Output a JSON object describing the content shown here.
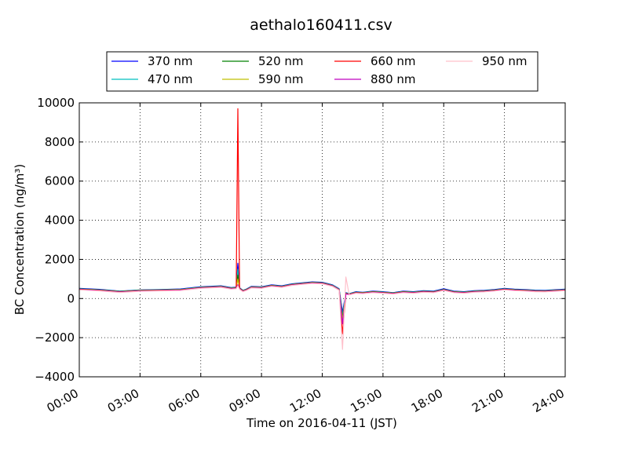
{
  "chart_data": {
    "type": "line",
    "title": "aethalo160411.csv",
    "xlabel": "Time on 2016-04-11 (JST)",
    "ylabel": "BC Concentration (ng/m³)",
    "xlim": [
      "00:00",
      "24:00"
    ],
    "ylim": [
      -4000,
      10000
    ],
    "grid": true,
    "legend_position": "top",
    "x_ticks": [
      "00:00",
      "03:00",
      "06:00",
      "09:00",
      "12:00",
      "15:00",
      "18:00",
      "21:00",
      "24:00"
    ],
    "y_ticks": [
      "−4000",
      "−2000",
      "0",
      "2000",
      "4000",
      "6000",
      "8000",
      "10000"
    ],
    "x": [
      "00:00",
      "01:00",
      "02:00",
      "03:00",
      "04:00",
      "05:00",
      "06:00",
      "07:00",
      "07:30",
      "07:45",
      "07:50",
      "07:55",
      "08:05",
      "08:15",
      "08:30",
      "09:00",
      "09:30",
      "10:00",
      "10:30",
      "11:00",
      "11:30",
      "12:00",
      "12:30",
      "12:50",
      "13:00",
      "13:10",
      "13:20",
      "13:40",
      "14:00",
      "14:30",
      "15:00",
      "15:30",
      "16:00",
      "16:30",
      "17:00",
      "17:30",
      "18:00",
      "18:30",
      "19:00",
      "19:30",
      "20:00",
      "20:30",
      "21:00",
      "21:30",
      "22:00",
      "22:30",
      "23:00",
      "23:30",
      "24:00"
    ],
    "series": [
      {
        "name": "370 nm",
        "color": "#0000ff",
        "values": [
          520,
          470,
          380,
          440,
          460,
          490,
          600,
          650,
          560,
          580,
          1800,
          550,
          420,
          480,
          620,
          600,
          700,
          650,
          750,
          800,
          850,
          830,
          700,
          500,
          -700,
          300,
          250,
          350,
          320,
          380,
          350,
          300,
          380,
          350,
          400,
          380,
          500,
          380,
          350,
          400,
          420,
          460,
          520,
          480,
          460,
          430,
          420,
          450,
          480
        ]
      },
      {
        "name": "470 nm",
        "color": "#00bfbf",
        "values": [
          500,
          450,
          370,
          430,
          450,
          470,
          580,
          630,
          540,
          560,
          1500,
          530,
          410,
          470,
          600,
          580,
          680,
          630,
          730,
          780,
          830,
          810,
          680,
          480,
          -900,
          280,
          240,
          330,
          310,
          360,
          330,
          290,
          360,
          330,
          380,
          360,
          470,
          360,
          330,
          380,
          400,
          440,
          500,
          460,
          440,
          410,
          400,
          430,
          460
        ]
      },
      {
        "name": "520 nm",
        "color": "#008000",
        "values": [
          490,
          440,
          360,
          420,
          440,
          460,
          570,
          620,
          530,
          550,
          1200,
          520,
          400,
          460,
          590,
          570,
          670,
          620,
          720,
          770,
          820,
          800,
          670,
          470,
          -1000,
          270,
          230,
          320,
          300,
          350,
          320,
          280,
          350,
          320,
          370,
          350,
          460,
          350,
          320,
          370,
          390,
          430,
          490,
          450,
          430,
          400,
          390,
          420,
          450
        ]
      },
      {
        "name": "590 nm",
        "color": "#bfbf00",
        "values": [
          480,
          430,
          350,
          410,
          430,
          450,
          560,
          610,
          520,
          540,
          1000,
          510,
          390,
          450,
          580,
          560,
          660,
          610,
          710,
          760,
          810,
          790,
          660,
          460,
          -1100,
          260,
          220,
          310,
          290,
          340,
          310,
          270,
          340,
          310,
          360,
          340,
          450,
          340,
          310,
          360,
          380,
          420,
          480,
          440,
          420,
          390,
          380,
          410,
          440
        ]
      },
      {
        "name": "660 nm",
        "color": "#ff0000",
        "values": [
          470,
          420,
          340,
          400,
          420,
          440,
          550,
          600,
          510,
          530,
          9700,
          500,
          380,
          440,
          570,
          550,
          650,
          600,
          700,
          750,
          800,
          780,
          650,
          450,
          -1800,
          250,
          210,
          300,
          280,
          330,
          300,
          260,
          330,
          300,
          350,
          330,
          440,
          330,
          300,
          350,
          370,
          410,
          470,
          430,
          410,
          380,
          370,
          400,
          430
        ]
      },
      {
        "name": "880 nm",
        "color": "#bf00bf",
        "values": [
          460,
          410,
          330,
          390,
          410,
          430,
          540,
          590,
          500,
          520,
          700,
          490,
          370,
          430,
          560,
          540,
          640,
          590,
          690,
          740,
          790,
          770,
          640,
          440,
          -1300,
          240,
          200,
          290,
          270,
          320,
          290,
          250,
          320,
          290,
          340,
          320,
          430,
          320,
          290,
          340,
          360,
          400,
          460,
          420,
          400,
          370,
          360,
          390,
          420
        ]
      },
      {
        "name": "950 nm",
        "color": "#ffc0cb",
        "values": [
          440,
          390,
          310,
          370,
          390,
          410,
          520,
          570,
          480,
          500,
          650,
          470,
          350,
          410,
          540,
          520,
          620,
          570,
          670,
          720,
          770,
          750,
          620,
          420,
          -2600,
          1100,
          180,
          270,
          250,
          300,
          270,
          230,
          300,
          270,
          320,
          300,
          410,
          300,
          270,
          320,
          340,
          380,
          440,
          400,
          380,
          350,
          340,
          370,
          400
        ]
      }
    ]
  }
}
